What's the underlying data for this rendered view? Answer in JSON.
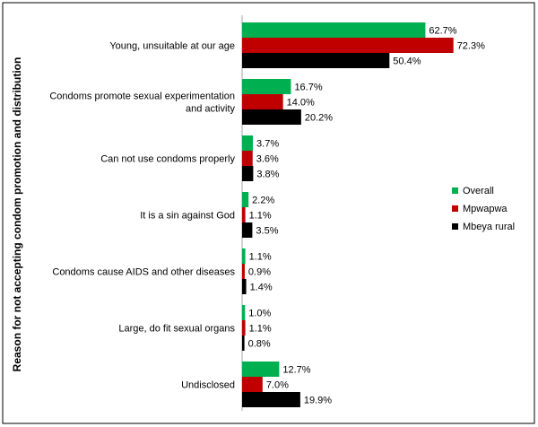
{
  "chart_data": {
    "type": "bar",
    "orientation": "horizontal",
    "ylabel": "Reason for not accepting condom promotion and distribution",
    "xlabel": "",
    "title": "",
    "value_suffix": "%",
    "xlim": [
      0,
      100
    ],
    "grid": false,
    "legend_position": "right",
    "categories": [
      [
        "Young, unsuitable at our age"
      ],
      [
        "Condoms promote sexual experimentation",
        "and activity"
      ],
      [
        "Can not use condoms properly"
      ],
      [
        "It is a sin against God"
      ],
      [
        "Condoms cause AIDS and other diseases"
      ],
      [
        "Large, do fit sexual organs"
      ],
      [
        "Undisclosed"
      ]
    ],
    "series": [
      {
        "name": "Overall",
        "color": "#00b050",
        "values": [
          62.7,
          16.7,
          3.7,
          2.2,
          1.1,
          1.0,
          12.7
        ]
      },
      {
        "name": "Mpwapwa",
        "color": "#c00000",
        "values": [
          72.3,
          14.0,
          3.6,
          1.1,
          0.9,
          1.1,
          7.0
        ]
      },
      {
        "name": "Mbeya rural",
        "color": "#000000",
        "values": [
          50.4,
          20.2,
          3.8,
          3.5,
          1.4,
          0.8,
          19.9
        ]
      }
    ]
  }
}
